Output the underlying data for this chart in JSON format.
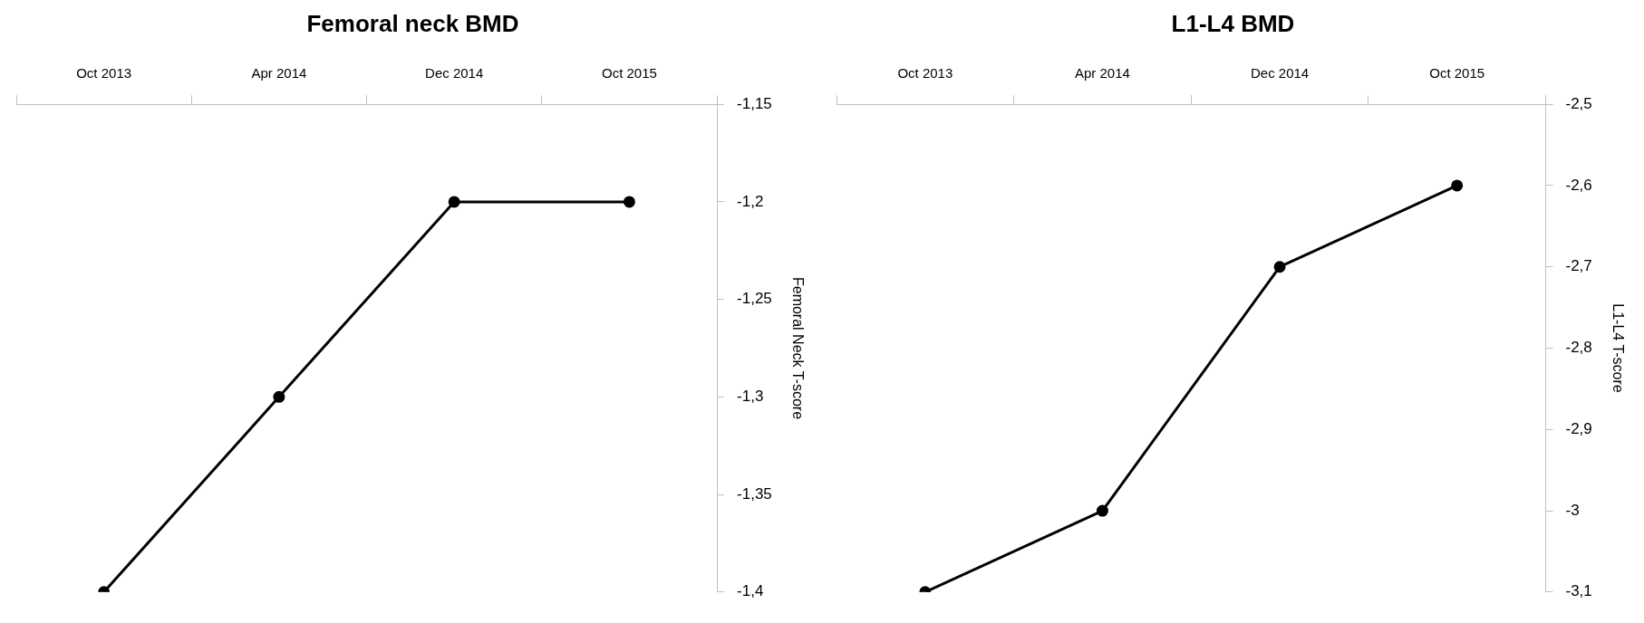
{
  "chart_data": [
    {
      "type": "line",
      "title": "Femoral neck BMD",
      "ylabel": "Femoral Neck T-score",
      "categories": [
        "Oct 2013",
        "Apr 2014",
        "Dec 2014",
        "Oct 2015"
      ],
      "series": [
        {
          "color": "#000000",
          "values": [
            -1.4,
            -1.3,
            -1.2,
            -1.2
          ]
        }
      ],
      "ylim": [
        -1.4,
        -1.15
      ],
      "yticks": [
        {
          "value": -1.4,
          "label": "-1,4"
        },
        {
          "value": -1.35,
          "label": "-1,35"
        },
        {
          "value": -1.3,
          "label": "-1,3"
        },
        {
          "value": -1.25,
          "label": "-1,25"
        },
        {
          "value": -1.2,
          "label": "-1,2"
        },
        {
          "value": -1.15,
          "label": "-1,15"
        }
      ],
      "grid": false,
      "legend": false,
      "marker": "circle",
      "line_style": "solid"
    },
    {
      "type": "line",
      "title": "L1-L4 BMD",
      "ylabel": "L1-L4 T-score",
      "categories": [
        "Oct 2013",
        "Apr 2014",
        "Dec 2014",
        "Oct 2015"
      ],
      "series": [
        {
          "color": "#000000",
          "values": [
            -3.1,
            -3.0,
            -2.7,
            -2.6
          ]
        }
      ],
      "ylim": [
        -3.1,
        -2.5
      ],
      "yticks": [
        {
          "value": -3.1,
          "label": "-3,1"
        },
        {
          "value": -3.0,
          "label": "-3"
        },
        {
          "value": -2.9,
          "label": "-2,9"
        },
        {
          "value": -2.8,
          "label": "-2,8"
        },
        {
          "value": -2.7,
          "label": "-2,7"
        },
        {
          "value": -2.6,
          "label": "-2,6"
        },
        {
          "value": -2.5,
          "label": "-2,5"
        }
      ],
      "grid": false,
      "legend": false,
      "marker": "circle",
      "line_style": "solid"
    }
  ]
}
